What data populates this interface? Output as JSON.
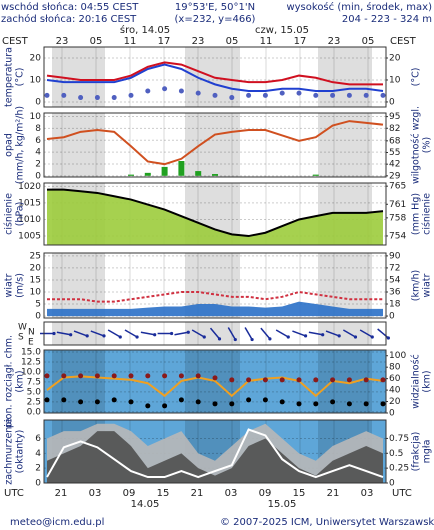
{
  "header": {
    "sunrise": "wschód słońca: 04:55 CEST",
    "sunset": "zachód słońca: 20:16 CEST",
    "coords": "19°53'E, 50°1'N",
    "grid": "(x=232, y=466)",
    "altitude_label": "wysokość (min, środek, max)",
    "altitude_values": "204 - 223 - 324 m"
  },
  "top_axis": {
    "zone_left": "CEST",
    "zone_right": "CEST",
    "hours": [
      "23",
      "05",
      "11",
      "17",
      "23",
      "05",
      "11",
      "17",
      "23",
      "05"
    ],
    "days": [
      "śro, 14.05",
      "czw, 15.05"
    ]
  },
  "bottom_axis": {
    "zone_left": "UTC",
    "zone_right": "UTC",
    "hours": [
      "21",
      "03",
      "09",
      "15",
      "21",
      "03",
      "09",
      "15",
      "21",
      "03"
    ],
    "days": [
      "14.05",
      "15.05"
    ]
  },
  "chart_data": [
    {
      "type": "line",
      "ylabel": [
        "temperatura",
        "(°C)"
      ],
      "y2label": [
        "(°C)"
      ],
      "background": "#ffffff",
      "ylim": [
        -2.3,
        25
      ],
      "yticks": [
        20,
        10,
        0
      ],
      "y2lim": [
        -2.3,
        25
      ],
      "y2ticks": [
        20,
        10,
        0
      ],
      "series": [
        {
          "kind": "dots",
          "color": "#5060c0",
          "values": [
            3,
            3,
            2,
            2,
            2,
            3,
            5,
            6,
            5,
            4,
            3,
            2,
            3,
            3,
            4,
            4,
            3,
            3,
            3,
            3,
            3
          ]
        },
        {
          "kind": "line",
          "color": "#2040d0",
          "values": [
            10,
            9,
            9,
            9,
            9,
            11,
            15,
            17,
            15,
            11,
            8,
            6,
            5,
            5,
            6,
            6,
            5,
            5,
            6,
            6,
            5
          ]
        },
        {
          "kind": "line",
          "color": "#d01020",
          "values": [
            12,
            11,
            10,
            10,
            10,
            12,
            16,
            18,
            17,
            14,
            11,
            10,
            9,
            9,
            10,
            12,
            11,
            9,
            8,
            8,
            8
          ]
        }
      ]
    },
    {
      "type": "line",
      "ylabel": [
        "opad",
        "(mm/h, kg/m²/h)"
      ],
      "y2label": [
        "wilgotność wzgl.",
        "(%)"
      ],
      "background": "#ffffff",
      "ylim": [
        -0.2,
        10.6
      ],
      "yticks": [
        10,
        8,
        6,
        4,
        2,
        0
      ],
      "y2lim": [
        27.7,
        99
      ],
      "y2ticks": [
        95,
        82,
        68,
        55,
        42,
        29
      ],
      "series": [
        {
          "kind": "bars",
          "color": "#20a020",
          "values": [
            0,
            0,
            0,
            0,
            0,
            0.2,
            0.5,
            1.5,
            2.5,
            0.8,
            0.3,
            0,
            0,
            0,
            0,
            0,
            0.2,
            0,
            0,
            0,
            0
          ]
        },
        {
          "kind": "line",
          "axis": "y2",
          "color": "#d05020",
          "values": [
            70,
            72,
            78,
            80,
            78,
            62,
            45,
            42,
            48,
            62,
            75,
            78,
            80,
            80,
            74,
            68,
            72,
            85,
            90,
            88,
            86
          ]
        }
      ]
    },
    {
      "type": "line",
      "ylabel": [
        "ciśnienie",
        "(hPa)"
      ],
      "y2label": [
        "(mm Hg)",
        "ciśnienie"
      ],
      "background": "#ffffff",
      "ylim": [
        1002.3,
        1021
      ],
      "yticks": [
        1020,
        1015,
        1010,
        1005
      ],
      "y2lim": [
        752,
        765.7
      ],
      "y2ticks": [
        765,
        761,
        758,
        754
      ],
      "series": [
        {
          "kind": "area",
          "color": "#9ccc3c",
          "values": [
            1019,
            1019,
            1018.5,
            1018,
            1017,
            1016,
            1014.5,
            1013,
            1011,
            1009,
            1007,
            1005.5,
            1005,
            1006,
            1008,
            1010,
            1011,
            1012,
            1012,
            1012,
            1012.5
          ]
        },
        {
          "kind": "line",
          "color": "#000000",
          "values": [
            1019,
            1019,
            1018.5,
            1018,
            1017,
            1016,
            1014.5,
            1013,
            1011,
            1009,
            1007,
            1005.5,
            1005,
            1006,
            1008,
            1010,
            1011,
            1012,
            1012,
            1012,
            1012.5
          ]
        }
      ]
    },
    {
      "type": "line",
      "ylabel": [
        "wiatr",
        "(m/s)"
      ],
      "y2label": [
        "(km/h)",
        "wiatr"
      ],
      "background": "#ffffff",
      "ylim": [
        -0.8,
        26.2
      ],
      "yticks": [
        25,
        20,
        15,
        10,
        5,
        0
      ],
      "y2lim": [
        -2.9,
        94.3
      ],
      "y2ticks": [
        90,
        72,
        54,
        36,
        18,
        0
      ],
      "series": [
        {
          "kind": "area",
          "color": "#2a70c8",
          "values": [
            3,
            3,
            3,
            3,
            3,
            3,
            3.5,
            4,
            4,
            5,
            5,
            4,
            4,
            3.5,
            4,
            6,
            5,
            4,
            3,
            3,
            3
          ]
        },
        {
          "kind": "line",
          "color": "#d03040",
          "dash": true,
          "values": [
            7,
            7,
            7,
            6,
            6,
            7,
            8,
            9,
            10,
            10,
            9,
            8,
            8,
            7,
            8,
            10,
            9,
            8,
            7,
            7,
            7
          ]
        }
      ]
    },
    {
      "type": "direction",
      "compass": [
        "W",
        "N",
        "S",
        "E"
      ],
      "background": "#ffffff",
      "color": "#1a2c9a",
      "values": [
        270,
        280,
        290,
        290,
        300,
        300,
        280,
        270,
        260,
        300,
        320,
        330,
        330,
        320,
        300,
        290,
        280,
        290,
        300,
        300,
        310
      ]
    },
    {
      "type": "line",
      "ylabel": [
        "pion. rozciągł. chm.",
        "(km)"
      ],
      "y2label": [
        "widzialność",
        "(km)"
      ],
      "background": "#5ea6d8",
      "ylim": [
        -0.3,
        15.5
      ],
      "yticks": [
        {
          "value": 15,
          "label": "15.0"
        },
        {
          "value": 12.5,
          "label": "12.5"
        },
        {
          "value": 10,
          "label": "10.0"
        },
        {
          "value": 7.5,
          "label": "7.5"
        },
        {
          "value": 5,
          "label": "5.0"
        },
        {
          "value": 2.5,
          "label": "2.5"
        },
        {
          "value": 0,
          "label": "0.0"
        }
      ],
      "y2lim": [
        0,
        110
      ],
      "y2ticks": [
        100,
        80,
        60,
        40,
        20,
        0
      ],
      "series": [
        {
          "kind": "line",
          "axis": "y2",
          "color": "#f0a020",
          "values": [
            40,
            62,
            64,
            62,
            60,
            58,
            52,
            30,
            56,
            62,
            56,
            30,
            56,
            60,
            62,
            56,
            30,
            56,
            52,
            60,
            56
          ]
        },
        {
          "kind": "dots",
          "color": "#8a1a1a",
          "values": [
            9,
            9,
            9,
            9,
            9,
            9,
            9,
            9,
            9,
            9,
            8.5,
            8,
            8,
            8,
            8,
            8,
            8,
            8,
            8,
            8,
            8
          ]
        },
        {
          "kind": "dots",
          "color": "#000000",
          "values": [
            3,
            3,
            2.5,
            2.5,
            3,
            2.5,
            1.5,
            1.5,
            3,
            2.5,
            2,
            2,
            3,
            3,
            2.5,
            2,
            2,
            2.5,
            2,
            2,
            2
          ]
        }
      ]
    },
    {
      "type": "line",
      "ylabel": [
        "zachmurzenie",
        "(oktanty)"
      ],
      "y2label": [
        "(frakcja)",
        "mgła"
      ],
      "background": "#5ea6d8",
      "ylim": [
        0,
        8.5
      ],
      "yticks": [
        6,
        4,
        2,
        0
      ],
      "y2lim": [
        0,
        1.06
      ],
      "y2ticks": [
        0.75,
        0.5,
        0.25,
        0
      ],
      "series": [
        {
          "kind": "area",
          "color": "#b8b8b8",
          "values": [
            6,
            7,
            7,
            8,
            8,
            7,
            5,
            6,
            7,
            4,
            3,
            5,
            7,
            8,
            6,
            4,
            3,
            5,
            6,
            7,
            6
          ]
        },
        {
          "kind": "area",
          "color": "#505050",
          "values": [
            3,
            4,
            5,
            7,
            7,
            5,
            2,
            3,
            4,
            2,
            1,
            2,
            5,
            6,
            4,
            2,
            1,
            3,
            4,
            5,
            4
          ]
        },
        {
          "kind": "line",
          "axis": "y2",
          "color": "#ffffff",
          "values": [
            0.1,
            0.6,
            0.7,
            0.6,
            0.4,
            0.2,
            0.1,
            0.1,
            0.2,
            0.1,
            0.2,
            0.3,
            0.9,
            0.8,
            0.4,
            0.2,
            0.1,
            0.2,
            0.3,
            0.2,
            0.1
          ]
        }
      ]
    }
  ],
  "footer": {
    "email": "meteo@icm.edu.pl",
    "copyright": "© 2007-2025 ICM, Uniwersytet Warszawski"
  }
}
